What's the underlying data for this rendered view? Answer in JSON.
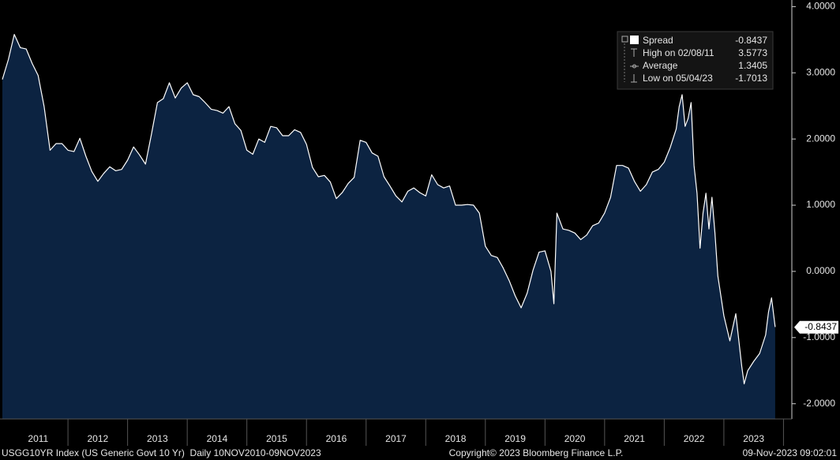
{
  "chart_data": {
    "type": "area",
    "series": [
      {
        "name": "Spread",
        "color": "#ffffff",
        "fill": "#0c2341",
        "x": [
          2010.9,
          2011.0,
          2011.1,
          2011.2,
          2011.3,
          2011.4,
          2011.5,
          2011.6,
          2011.7,
          2011.8,
          2011.9,
          2012.0,
          2012.1,
          2012.2,
          2012.3,
          2012.4,
          2012.5,
          2012.6,
          2012.7,
          2012.8,
          2012.9,
          2013.0,
          2013.1,
          2013.2,
          2013.3,
          2013.4,
          2013.5,
          2013.6,
          2013.7,
          2013.8,
          2013.9,
          2014.0,
          2014.1,
          2014.2,
          2014.3,
          2014.4,
          2014.5,
          2014.6,
          2014.7,
          2014.8,
          2014.9,
          2015.0,
          2015.1,
          2015.2,
          2015.3,
          2015.4,
          2015.5,
          2015.6,
          2015.7,
          2015.8,
          2015.9,
          2016.0,
          2016.1,
          2016.2,
          2016.3,
          2016.4,
          2016.5,
          2016.6,
          2016.7,
          2016.8,
          2016.9,
          2017.0,
          2017.1,
          2017.2,
          2017.3,
          2017.4,
          2017.5,
          2017.6,
          2017.7,
          2017.8,
          2017.9,
          2018.0,
          2018.1,
          2018.2,
          2018.3,
          2018.4,
          2018.5,
          2018.6,
          2018.7,
          2018.8,
          2018.9,
          2019.0,
          2019.1,
          2019.2,
          2019.3,
          2019.4,
          2019.5,
          2019.6,
          2019.7,
          2019.8,
          2019.9,
          2020.0,
          2020.1,
          2020.15,
          2020.2,
          2020.3,
          2020.4,
          2020.5,
          2020.6,
          2020.7,
          2020.8,
          2020.9,
          2021.0,
          2021.1,
          2021.2,
          2021.3,
          2021.4,
          2021.5,
          2021.6,
          2021.7,
          2021.8,
          2021.9,
          2022.0,
          2022.1,
          2022.2,
          2022.25,
          2022.3,
          2022.35,
          2022.4,
          2022.45,
          2022.5,
          2022.55,
          2022.6,
          2022.65,
          2022.7,
          2022.75,
          2022.8,
          2022.85,
          2022.9,
          2023.0,
          2023.1,
          2023.2,
          2023.3,
          2023.34,
          2023.4,
          2023.5,
          2023.6,
          2023.7,
          2023.75,
          2023.8,
          2023.86
        ],
        "values": [
          2.9,
          3.2,
          3.58,
          3.38,
          3.36,
          3.14,
          2.96,
          2.49,
          1.83,
          1.93,
          1.93,
          1.83,
          1.81,
          2.01,
          1.74,
          1.51,
          1.36,
          1.48,
          1.58,
          1.52,
          1.54,
          1.68,
          1.88,
          1.76,
          1.62,
          2.07,
          2.55,
          2.61,
          2.85,
          2.62,
          2.77,
          2.85,
          2.67,
          2.64,
          2.55,
          2.45,
          2.43,
          2.39,
          2.49,
          2.23,
          2.13,
          1.83,
          1.77,
          2.0,
          1.95,
          2.19,
          2.17,
          2.05,
          2.05,
          2.14,
          2.1,
          1.92,
          1.57,
          1.43,
          1.45,
          1.35,
          1.1,
          1.19,
          1.33,
          1.42,
          1.98,
          1.95,
          1.79,
          1.74,
          1.43,
          1.29,
          1.14,
          1.05,
          1.21,
          1.26,
          1.19,
          1.14,
          1.46,
          1.31,
          1.26,
          1.29,
          1.0,
          1.0,
          1.01,
          1.0,
          0.88,
          0.38,
          0.24,
          0.21,
          0.05,
          -0.14,
          -0.37,
          -0.55,
          -0.33,
          0.02,
          0.29,
          0.31,
          0.0,
          -0.49,
          0.88,
          0.64,
          0.62,
          0.58,
          0.48,
          0.55,
          0.69,
          0.73,
          0.88,
          1.12,
          1.6,
          1.6,
          1.56,
          1.36,
          1.21,
          1.31,
          1.5,
          1.54,
          1.65,
          1.87,
          2.15,
          2.49,
          2.67,
          2.19,
          2.31,
          2.55,
          1.6,
          1.18,
          0.35,
          0.88,
          1.18,
          0.64,
          1.12,
          0.58,
          -0.07,
          -0.67,
          -1.05,
          -0.64,
          -1.44,
          -1.7,
          -1.5,
          -1.36,
          -1.24,
          -0.96,
          -0.61,
          -0.4,
          -0.84
        ]
      }
    ],
    "last_value": -0.8437,
    "stats": [
      {
        "label": "High on 02/08/11",
        "value": 3.5773
      },
      {
        "label": "Average",
        "value": 1.3405
      },
      {
        "label": "Low on 05/04/23",
        "value": -1.7013
      }
    ],
    "xlim": [
      2010.86,
      2024.14
    ],
    "xticks": [
      2011,
      2012,
      2013,
      2014,
      2015,
      2016,
      2017,
      2018,
      2019,
      2020,
      2021,
      2022,
      2023
    ],
    "ylim": [
      -2.23,
      4.1
    ],
    "yticks": [
      {
        "value": 4,
        "label": "4.0000"
      },
      {
        "value": 3,
        "label": "3.0000"
      },
      {
        "value": 2,
        "label": "2.0000"
      },
      {
        "value": 1,
        "label": "1.0000"
      },
      {
        "value": 0,
        "label": "0.0000"
      },
      {
        "value": -1,
        "label": "-1.0000"
      },
      {
        "value": -2,
        "label": "-2.0000"
      }
    ],
    "footer": {
      "left": "USGG10YR Index (US Generic Govt 10 Yr)  Daily 10NOV2010-09NOV2023",
      "center": "Copyright© 2023 Bloomberg Finance L.P.",
      "right": "09-Nov-2023 09:02:01"
    }
  }
}
